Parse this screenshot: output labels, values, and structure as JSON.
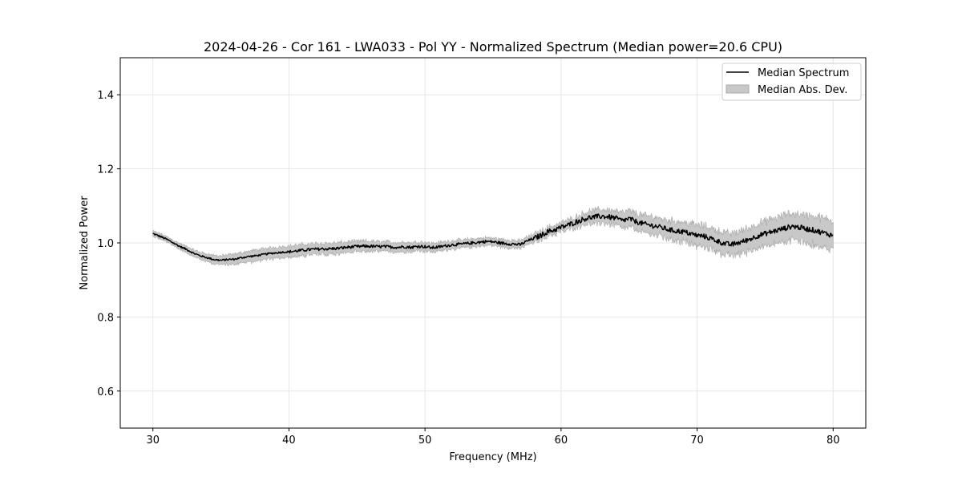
{
  "chart_data": {
    "type": "line",
    "title": "2024-04-26 - Cor 161 - LWA033 - Pol YY - Normalized Spectrum (Median power=20.6 CPU)",
    "xlabel": "Frequency (MHz)",
    "ylabel": "Normalized Power",
    "xlim": [
      27.6,
      82.4
    ],
    "ylim": [
      0.5,
      1.5
    ],
    "xticks": [
      30,
      40,
      50,
      60,
      70,
      80
    ],
    "xtick_labels": [
      "30",
      "40",
      "50",
      "60",
      "70",
      "80"
    ],
    "yticks": [
      0.6,
      0.8,
      1.0,
      1.2,
      1.4
    ],
    "ytick_labels": [
      "0.6",
      "0.8",
      "1.0",
      "1.2",
      "1.4"
    ],
    "grid": true,
    "legend_position": "top-right",
    "series": [
      {
        "name": "Median Spectrum",
        "kind": "line",
        "color": "#000000",
        "x": [
          30,
          30.5,
          31,
          31.5,
          32,
          32.5,
          33,
          33.5,
          34,
          34.5,
          35,
          35.5,
          36,
          36.5,
          37,
          37.5,
          38,
          38.5,
          39,
          39.5,
          40,
          40.5,
          41,
          41.5,
          42,
          42.5,
          43,
          43.5,
          44,
          44.5,
          45,
          45.5,
          46,
          46.5,
          47,
          47.5,
          48,
          48.5,
          49,
          49.5,
          50,
          50.5,
          51,
          51.5,
          52,
          52.5,
          53,
          53.5,
          54,
          54.5,
          55,
          55.5,
          56,
          56.5,
          57,
          57.5,
          58,
          58.5,
          59,
          59.5,
          60,
          60.5,
          61,
          61.5,
          62,
          62.5,
          63,
          63.5,
          64,
          64.5,
          65,
          65.5,
          66,
          66.5,
          67,
          67.5,
          68,
          68.5,
          69,
          69.5,
          70,
          70.5,
          71,
          71.5,
          72,
          72.5,
          73,
          73.5,
          74,
          74.5,
          75,
          75.5,
          76,
          76.5,
          77,
          77.5,
          78,
          78.5,
          79,
          79.5,
          80
        ],
        "y": [
          1.025,
          1.018,
          1.01,
          1.0,
          0.99,
          0.982,
          0.972,
          0.965,
          0.96,
          0.955,
          0.953,
          0.955,
          0.956,
          0.96,
          0.963,
          0.965,
          0.968,
          0.971,
          0.973,
          0.975,
          0.976,
          0.978,
          0.98,
          0.982,
          0.983,
          0.984,
          0.984,
          0.985,
          0.987,
          0.989,
          0.99,
          0.991,
          0.991,
          0.99,
          0.99,
          0.989,
          0.988,
          0.99,
          0.988,
          0.991,
          0.99,
          0.987,
          0.989,
          0.992,
          0.995,
          0.996,
          0.998,
          1.0,
          1.002,
          1.004,
          1.003,
          1.0,
          0.998,
          0.997,
          0.995,
          1.005,
          1.012,
          1.02,
          1.03,
          1.035,
          1.042,
          1.048,
          1.055,
          1.062,
          1.068,
          1.07,
          1.072,
          1.07,
          1.067,
          1.06,
          1.065,
          1.058,
          1.052,
          1.048,
          1.045,
          1.04,
          1.035,
          1.032,
          1.03,
          1.025,
          1.02,
          1.018,
          1.012,
          1.005,
          0.998,
          0.995,
          1.0,
          1.005,
          1.012,
          1.02,
          1.025,
          1.03,
          1.035,
          1.04,
          1.045,
          1.042,
          1.038,
          1.035,
          1.03,
          1.025,
          1.02
        ]
      },
      {
        "name": "Median Abs. Dev.",
        "kind": "band",
        "color": "#c8c8c8",
        "x": [
          30,
          32.5,
          35,
          37.5,
          40,
          42.5,
          45,
          47.5,
          50,
          52.5,
          55,
          57.5,
          60,
          62.5,
          65,
          67.5,
          70,
          72.5,
          75,
          77.5,
          80
        ],
        "half_width": [
          0.007,
          0.008,
          0.012,
          0.015,
          0.015,
          0.015,
          0.014,
          0.013,
          0.012,
          0.011,
          0.01,
          0.011,
          0.012,
          0.018,
          0.022,
          0.025,
          0.028,
          0.03,
          0.033,
          0.036,
          0.04
        ]
      }
    ]
  }
}
